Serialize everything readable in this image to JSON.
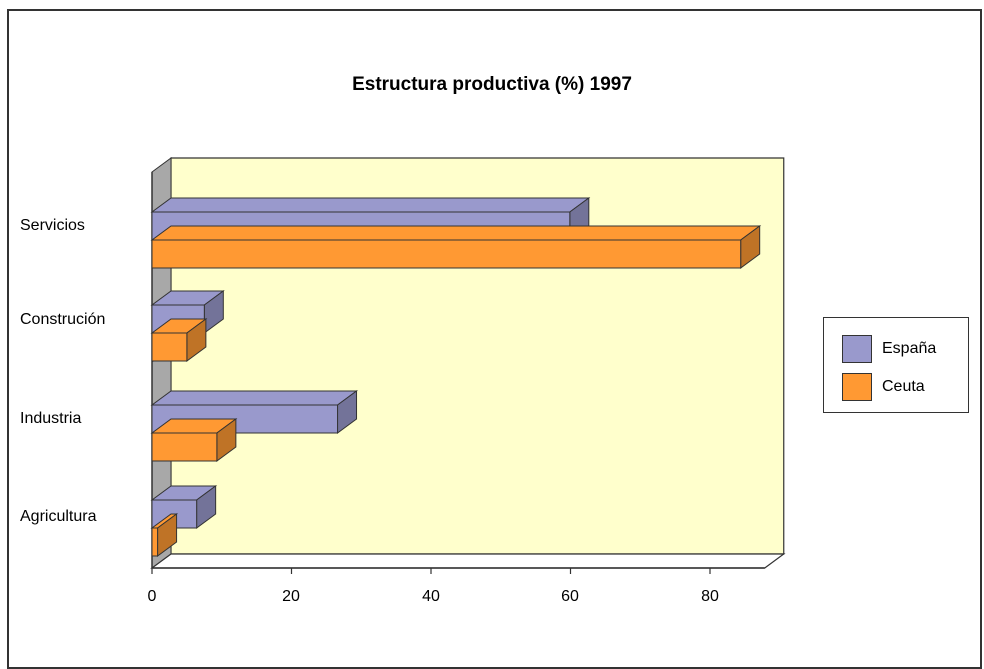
{
  "chart_data": {
    "type": "bar",
    "orientation": "horizontal",
    "title": "Estructura productiva (%) 1997",
    "categories": [
      "Agricultura",
      "Industria",
      "Construción",
      "Servicios"
    ],
    "series": [
      {
        "name": "España",
        "values": [
          6.4,
          26.6,
          7.5,
          59.9
        ],
        "color": "#9999cc"
      },
      {
        "name": "Ceuta",
        "values": [
          0.8,
          9.3,
          5.0,
          84.4
        ],
        "color": "#ff9933"
      }
    ],
    "xlim": [
      0,
      90
    ],
    "xticks": [
      "0",
      "20",
      "40",
      "60",
      "80"
    ],
    "legend_position": "right",
    "plot_background": "#ffffcc",
    "grid": false
  }
}
